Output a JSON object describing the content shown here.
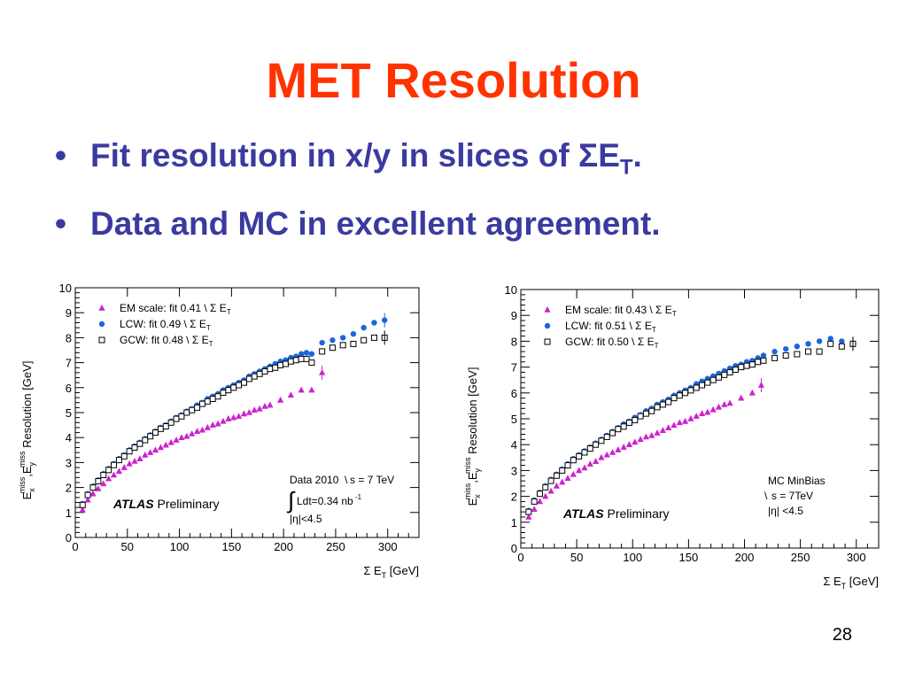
{
  "slide": {
    "title": "MET Resolution",
    "bullets": [
      {
        "text": "Fit resolution in x/y in slices of ΣE",
        "sub": "T",
        "suffix": "."
      },
      {
        "text": "Data and MC in excellent agreement.",
        "sub": "",
        "suffix": ""
      }
    ],
    "page_number": "28",
    "colors": {
      "title": "#ff3300",
      "bullets": "#3a3aa0"
    }
  },
  "chart_data": [
    {
      "type": "scatter",
      "xlim": [
        0,
        330
      ],
      "ylim": [
        0,
        10
      ],
      "x_ticks": [
        0,
        50,
        100,
        150,
        200,
        250,
        300
      ],
      "y_ticks": [
        0,
        1,
        2,
        3,
        4,
        5,
        6,
        7,
        8,
        9,
        10
      ],
      "xlabel": "Σ E",
      "xlabel_sub": "T",
      "xlabel_unit": "[GeV]",
      "ylabel_pre": "E",
      "ylabel_sub1": "x",
      "ylabel_sup1": "miss",
      "ylabel_mid": ",E",
      "ylabel_sub2": "y",
      "ylabel_sup2": "miss",
      "ylabel_post": " Resolution [GeV]",
      "legend_position": "top-left",
      "atlas_label": "ATLAS",
      "atlas_suffix": "Preliminary",
      "annotation_lines": [
        "Data 2010",
        "s = 7 TeV",
        "Ldt=0.34 nb",
        "-1",
        "|η|<4.5"
      ],
      "series": [
        {
          "name": "EM scale: fit 0.41",
          "marker": "triangle",
          "color": "#cc22cc",
          "x": [
            7,
            12,
            17,
            22,
            27,
            32,
            37,
            42,
            47,
            52,
            57,
            62,
            67,
            72,
            77,
            82,
            87,
            92,
            97,
            102,
            107,
            112,
            117,
            122,
            127,
            132,
            137,
            142,
            147,
            152,
            157,
            162,
            167,
            172,
            177,
            182,
            187,
            197,
            207,
            217,
            227,
            237
          ],
          "y": [
            1.1,
            1.5,
            1.75,
            1.95,
            2.15,
            2.35,
            2.5,
            2.65,
            2.8,
            2.95,
            3.05,
            3.15,
            3.3,
            3.4,
            3.5,
            3.6,
            3.7,
            3.8,
            3.9,
            4.0,
            4.05,
            4.15,
            4.25,
            4.3,
            4.4,
            4.5,
            4.55,
            4.65,
            4.75,
            4.8,
            4.85,
            4.95,
            5.0,
            5.1,
            5.15,
            5.25,
            5.3,
            5.5,
            5.7,
            5.9,
            5.9,
            6.6
          ]
        },
        {
          "name": "LCW: fit 0.49",
          "marker": "circle",
          "color": "#1a66dd",
          "x": [
            7,
            12,
            17,
            22,
            27,
            32,
            37,
            42,
            47,
            52,
            57,
            62,
            67,
            72,
            77,
            82,
            87,
            92,
            97,
            102,
            107,
            112,
            117,
            122,
            127,
            132,
            137,
            142,
            147,
            152,
            157,
            162,
            167,
            172,
            177,
            182,
            187,
            192,
            197,
            202,
            207,
            212,
            217,
            222,
            227,
            237,
            247,
            257,
            267,
            277,
            287,
            297
          ],
          "y": [
            1.35,
            1.75,
            2.05,
            2.3,
            2.55,
            2.75,
            2.95,
            3.15,
            3.3,
            3.5,
            3.65,
            3.8,
            3.95,
            4.1,
            4.25,
            4.4,
            4.5,
            4.65,
            4.8,
            4.9,
            5.05,
            5.15,
            5.3,
            5.4,
            5.55,
            5.65,
            5.75,
            5.9,
            6.0,
            6.1,
            6.2,
            6.3,
            6.45,
            6.55,
            6.65,
            6.75,
            6.85,
            6.95,
            7.05,
            7.1,
            7.2,
            7.25,
            7.35,
            7.4,
            7.35,
            7.8,
            7.9,
            8.0,
            8.15,
            8.4,
            8.6,
            8.7
          ]
        },
        {
          "name": "GCW: fit 0.48",
          "marker": "square",
          "color": "#000000",
          "x": [
            7,
            12,
            17,
            22,
            27,
            32,
            37,
            42,
            47,
            52,
            57,
            62,
            67,
            72,
            77,
            82,
            87,
            92,
            97,
            102,
            107,
            112,
            117,
            122,
            127,
            132,
            137,
            142,
            147,
            152,
            157,
            162,
            167,
            172,
            177,
            182,
            187,
            192,
            197,
            202,
            207,
            212,
            217,
            222,
            227,
            237,
            247,
            257,
            267,
            277,
            287,
            297
          ],
          "y": [
            1.3,
            1.7,
            2.0,
            2.25,
            2.5,
            2.7,
            2.9,
            3.1,
            3.25,
            3.45,
            3.6,
            3.75,
            3.9,
            4.05,
            4.2,
            4.35,
            4.45,
            4.6,
            4.75,
            4.85,
            5.0,
            5.1,
            5.2,
            5.35,
            5.45,
            5.55,
            5.65,
            5.8,
            5.9,
            6.0,
            6.1,
            6.2,
            6.35,
            6.45,
            6.55,
            6.65,
            6.75,
            6.8,
            6.9,
            6.95,
            7.05,
            7.1,
            7.15,
            7.15,
            7.0,
            7.45,
            7.6,
            7.7,
            7.75,
            7.9,
            8.0,
            8.0
          ]
        }
      ],
      "fit_labels": [
        "EM scale: fit 0.41",
        "LCW: fit 0.49",
        "GCW: fit 0.48"
      ]
    },
    {
      "type": "scatter",
      "xlim": [
        0,
        320
      ],
      "ylim": [
        0,
        10
      ],
      "x_ticks": [
        0,
        50,
        100,
        150,
        200,
        250,
        300
      ],
      "y_ticks": [
        0,
        1,
        2,
        3,
        4,
        5,
        6,
        7,
        8,
        9,
        10
      ],
      "xlabel": "Σ E",
      "xlabel_sub": "T",
      "xlabel_unit": "[GeV]",
      "ylabel_pre": "E",
      "ylabel_sub1": "x",
      "ylabel_sup1": "miss",
      "ylabel_mid": ",E",
      "ylabel_sub2": "y",
      "ylabel_sup2": "miss",
      "ylabel_post": " Resolution [GeV]",
      "legend_position": "top-left",
      "atlas_label": "ATLAS",
      "atlas_suffix": "Preliminary",
      "annotation_lines": [
        "MC MinBias",
        "s = 7TeV",
        "|η| <4.5"
      ],
      "series": [
        {
          "name": "EM scale: fit 0.43",
          "marker": "triangle",
          "color": "#cc22cc",
          "x": [
            7,
            12,
            17,
            22,
            27,
            32,
            37,
            42,
            47,
            52,
            57,
            62,
            67,
            72,
            77,
            82,
            87,
            92,
            97,
            102,
            107,
            112,
            117,
            122,
            127,
            132,
            137,
            142,
            147,
            152,
            157,
            162,
            167,
            172,
            177,
            182,
            187,
            197,
            207,
            215
          ],
          "y": [
            1.2,
            1.5,
            1.8,
            2.0,
            2.2,
            2.4,
            2.55,
            2.7,
            2.85,
            3.0,
            3.1,
            3.25,
            3.35,
            3.5,
            3.6,
            3.7,
            3.8,
            3.9,
            4.0,
            4.1,
            4.2,
            4.3,
            4.35,
            4.45,
            4.55,
            4.65,
            4.75,
            4.85,
            4.9,
            5.0,
            5.1,
            5.2,
            5.25,
            5.35,
            5.45,
            5.55,
            5.6,
            5.8,
            6.0,
            6.3
          ]
        },
        {
          "name": "LCW: fit 0.51",
          "marker": "circle",
          "color": "#1a66dd",
          "x": [
            7,
            12,
            17,
            22,
            27,
            32,
            37,
            42,
            47,
            52,
            57,
            62,
            67,
            72,
            77,
            82,
            87,
            92,
            97,
            102,
            107,
            112,
            117,
            122,
            127,
            132,
            137,
            142,
            147,
            152,
            157,
            162,
            167,
            172,
            177,
            182,
            187,
            192,
            197,
            202,
            207,
            212,
            217,
            227,
            237,
            247,
            257,
            267,
            277,
            287,
            297
          ],
          "y": [
            1.45,
            1.85,
            2.15,
            2.4,
            2.65,
            2.85,
            3.05,
            3.25,
            3.45,
            3.6,
            3.75,
            3.9,
            4.05,
            4.2,
            4.35,
            4.5,
            4.65,
            4.8,
            4.9,
            5.05,
            5.15,
            5.3,
            5.4,
            5.55,
            5.65,
            5.75,
            5.9,
            6.0,
            6.1,
            6.2,
            6.35,
            6.45,
            6.55,
            6.65,
            6.75,
            6.85,
            6.95,
            7.05,
            7.1,
            7.2,
            7.25,
            7.35,
            7.45,
            7.6,
            7.7,
            7.8,
            7.9,
            8.0,
            8.1,
            8.0,
            7.9
          ]
        },
        {
          "name": "GCW: fit 0.50",
          "marker": "square",
          "color": "#000000",
          "x": [
            7,
            12,
            17,
            22,
            27,
            32,
            37,
            42,
            47,
            52,
            57,
            62,
            67,
            72,
            77,
            82,
            87,
            92,
            97,
            102,
            107,
            112,
            117,
            122,
            127,
            132,
            137,
            142,
            147,
            152,
            157,
            162,
            167,
            172,
            177,
            182,
            187,
            192,
            197,
            202,
            207,
            212,
            217,
            227,
            237,
            247,
            257,
            267,
            277,
            287,
            297
          ],
          "y": [
            1.4,
            1.8,
            2.1,
            2.35,
            2.6,
            2.8,
            3.0,
            3.2,
            3.4,
            3.55,
            3.7,
            3.85,
            4.0,
            4.15,
            4.3,
            4.45,
            4.6,
            4.7,
            4.85,
            4.95,
            5.1,
            5.2,
            5.3,
            5.45,
            5.55,
            5.65,
            5.8,
            5.9,
            6.0,
            6.1,
            6.2,
            6.3,
            6.4,
            6.5,
            6.6,
            6.7,
            6.8,
            6.9,
            7.0,
            7.05,
            7.1,
            7.2,
            7.25,
            7.35,
            7.45,
            7.5,
            7.6,
            7.6,
            7.9,
            7.8,
            7.9
          ]
        }
      ],
      "fit_labels": [
        "EM scale: fit 0.43",
        "LCW: fit 0.51",
        "GCW: fit 0.50"
      ]
    }
  ]
}
